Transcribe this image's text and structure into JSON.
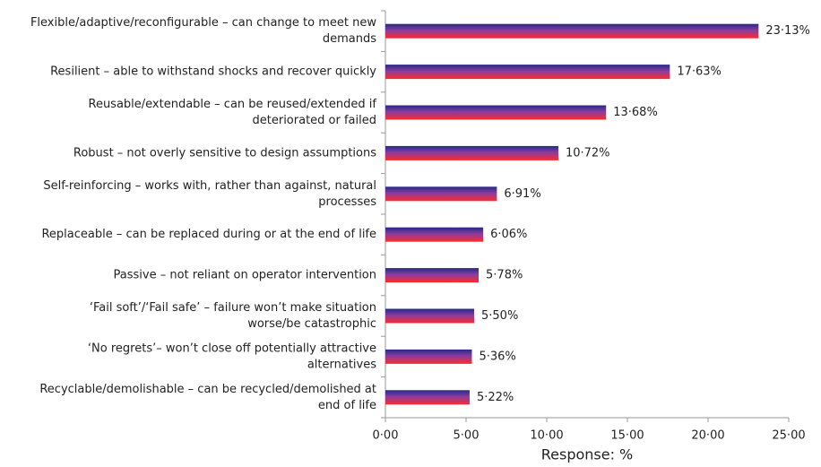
{
  "chart_data": {
    "type": "barh",
    "categories": [
      [
        "Flexible/adaptive/reconfigurable – can change to meet new",
        "demands"
      ],
      [
        "Resilient – able to withstand shocks and recover quickly"
      ],
      [
        "Reusable/extendable – can be reused/extended if",
        "deteriorated or failed"
      ],
      [
        "Robust – not overly sensitive to design assumptions"
      ],
      [
        "Self-reinforcing – works with, rather than against, natural",
        "processes"
      ],
      [
        "Replaceable – can be replaced during or at the end of life"
      ],
      [
        "Passive – not reliant on operator intervention"
      ],
      [
        "‘Fail soft’/‘Fail safe’ – failure won’t make situation",
        "worse/be catastrophic"
      ],
      [
        "‘No regrets’– won’t close off potentially attractive",
        "alternatives"
      ],
      [
        "Recyclable/demolishable – can be recycled/demolished at",
        "end of life"
      ]
    ],
    "values": [
      23.13,
      17.63,
      13.68,
      10.72,
      6.91,
      6.06,
      5.78,
      5.5,
      5.36,
      5.22
    ],
    "value_labels": [
      "23·13%",
      "17·63%",
      "13·68%",
      "10·72%",
      "6·91%",
      "6·06%",
      "5·78%",
      "5·50%",
      "5·36%",
      "5·22%"
    ],
    "colors": [
      "#262a86",
      "#ff2a2a"
    ],
    "xlabel": "Response: %",
    "xlim": [
      0,
      25
    ],
    "xticks": [
      {
        "value": 0,
        "label": "0·00"
      },
      {
        "value": 5,
        "label": "5·00"
      },
      {
        "value": 10,
        "label": "10·00"
      },
      {
        "value": 15,
        "label": "15·00"
      },
      {
        "value": 20,
        "label": "20·00"
      },
      {
        "value": 25,
        "label": "25·00"
      }
    ]
  }
}
